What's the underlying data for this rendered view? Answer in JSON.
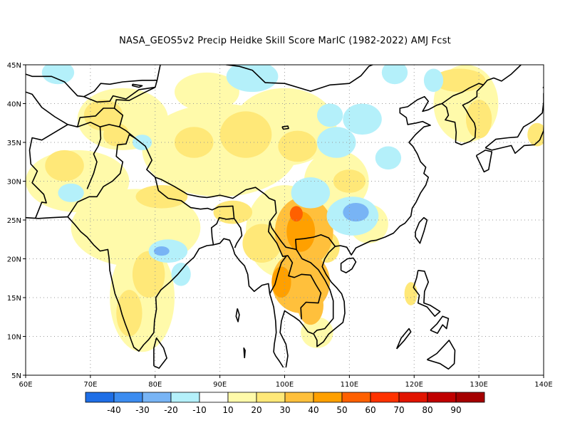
{
  "title": "NASA_GEOS5v2 Precip Heidke Skill Score MarIC (1982-2022) AMJ Fcst",
  "map": {
    "lon_range": [
      60,
      140
    ],
    "lat_range": [
      5,
      45
    ],
    "lon_ticks": [
      {
        "value": 60,
        "label": "60E"
      },
      {
        "value": 70,
        "label": "70E"
      },
      {
        "value": 80,
        "label": "80E"
      },
      {
        "value": 90,
        "label": "90E"
      },
      {
        "value": 100,
        "label": "100E"
      },
      {
        "value": 110,
        "label": "110E"
      },
      {
        "value": 120,
        "label": "120E"
      },
      {
        "value": 130,
        "label": "130E"
      },
      {
        "value": 140,
        "label": "140E"
      }
    ],
    "lat_ticks": [
      {
        "value": 5,
        "label": "5N"
      },
      {
        "value": 10,
        "label": "10N"
      },
      {
        "value": 15,
        "label": "15N"
      },
      {
        "value": 20,
        "label": "20N"
      },
      {
        "value": 25,
        "label": "25N"
      },
      {
        "value": 30,
        "label": "30N"
      },
      {
        "value": 35,
        "label": "35N"
      },
      {
        "value": 40,
        "label": "40N"
      },
      {
        "value": 45,
        "label": "45N"
      }
    ],
    "grid": "dotted",
    "skill_patches": [
      {
        "lon": 103,
        "lat": 23.5,
        "rx": 4.5,
        "ry": 4.5,
        "level": 30
      },
      {
        "lon": 102.5,
        "lat": 17,
        "rx": 4.5,
        "ry": 4,
        "level": 30
      },
      {
        "lon": 102.5,
        "lat": 23.5,
        "rx": 2.2,
        "ry": 2.6,
        "level": 40
      },
      {
        "lon": 101.8,
        "lat": 25.8,
        "rx": 1,
        "ry": 1,
        "level": 50
      },
      {
        "lon": 99.5,
        "lat": 17,
        "rx": 1.5,
        "ry": 2,
        "level": 40
      },
      {
        "lon": 104,
        "lat": 14,
        "rx": 2,
        "ry": 2.5,
        "level": 30
      },
      {
        "lon": 96.5,
        "lat": 22,
        "rx": 3,
        "ry": 2.5,
        "level": 20
      },
      {
        "lon": 92,
        "lat": 26,
        "rx": 3,
        "ry": 1.5,
        "level": 20
      },
      {
        "lon": 72,
        "lat": 38.5,
        "rx": 3,
        "ry": 2,
        "level": 20
      },
      {
        "lon": 74,
        "lat": 36,
        "rx": 2,
        "ry": 1.5,
        "level": 20
      },
      {
        "lon": 81,
        "lat": 28,
        "rx": 4,
        "ry": 1.5,
        "level": 20
      },
      {
        "lon": 79,
        "lat": 18,
        "rx": 2.5,
        "ry": 3,
        "level": 20
      },
      {
        "lon": 76,
        "lat": 13,
        "rx": 2,
        "ry": 3,
        "level": 20
      },
      {
        "lon": 94,
        "lat": 36,
        "rx": 4,
        "ry": 3,
        "level": 20
      },
      {
        "lon": 102,
        "lat": 34.5,
        "rx": 3,
        "ry": 2,
        "level": 20
      },
      {
        "lon": 86,
        "lat": 35,
        "rx": 3,
        "ry": 2,
        "level": 20
      },
      {
        "lon": 66,
        "lat": 32,
        "rx": 3,
        "ry": 2,
        "level": 20
      },
      {
        "lon": 106.5,
        "lat": 21.5,
        "rx": 2,
        "ry": 2,
        "level": 20
      },
      {
        "lon": 119.5,
        "lat": 15.5,
        "rx": 1,
        "ry": 1.5,
        "level": 20
      },
      {
        "lon": 127,
        "lat": 43,
        "rx": 4,
        "ry": 1.5,
        "level": 20
      },
      {
        "lon": 130,
        "lat": 38,
        "rx": 2,
        "ry": 2.5,
        "level": 20
      },
      {
        "lon": 139,
        "lat": 36,
        "rx": 1.5,
        "ry": 1.5,
        "level": 20
      },
      {
        "lon": 110,
        "lat": 30,
        "rx": 2.5,
        "ry": 1.5,
        "level": 20
      },
      {
        "lon": 100,
        "lat": 23.5,
        "rx": 6,
        "ry": 6,
        "level": 10
      },
      {
        "lon": 77,
        "lat": 24,
        "rx": 10,
        "ry": 5,
        "level": 10
      },
      {
        "lon": 78,
        "lat": 15,
        "rx": 5,
        "ry": 7,
        "level": 10
      },
      {
        "lon": 68,
        "lat": 30,
        "rx": 8,
        "ry": 4,
        "level": 10
      },
      {
        "lon": 75,
        "lat": 38,
        "rx": 7,
        "ry": 4,
        "level": 10
      },
      {
        "lon": 90,
        "lat": 34,
        "rx": 12,
        "ry": 6,
        "level": 10
      },
      {
        "lon": 100,
        "lat": 37,
        "rx": 8,
        "ry": 5,
        "level": 10
      },
      {
        "lon": 108,
        "lat": 30,
        "rx": 5,
        "ry": 4,
        "level": 10
      },
      {
        "lon": 128,
        "lat": 40,
        "rx": 5,
        "ry": 5,
        "level": 10
      },
      {
        "lon": 88,
        "lat": 41.5,
        "rx": 5,
        "ry": 2.5,
        "level": 10
      },
      {
        "lon": 113,
        "lat": 24.5,
        "rx": 3,
        "ry": 2.5,
        "level": 10
      },
      {
        "lon": 105,
        "lat": 10.5,
        "rx": 2.5,
        "ry": 2,
        "level": 10
      },
      {
        "lon": 111,
        "lat": 26,
        "rx": 2,
        "ry": 1.2,
        "level": -20
      },
      {
        "lon": 110.5,
        "lat": 25.5,
        "rx": 4,
        "ry": 2.5,
        "level": -10
      },
      {
        "lon": 104,
        "lat": 28.5,
        "rx": 3,
        "ry": 2,
        "level": -10
      },
      {
        "lon": 108,
        "lat": 35,
        "rx": 3,
        "ry": 2,
        "level": -10
      },
      {
        "lon": 112,
        "lat": 38,
        "rx": 3,
        "ry": 2,
        "level": -10
      },
      {
        "lon": 95,
        "lat": 43.5,
        "rx": 4,
        "ry": 2,
        "level": -10
      },
      {
        "lon": 82,
        "lat": 21,
        "rx": 3,
        "ry": 1.5,
        "level": -10
      },
      {
        "lon": 81,
        "lat": 21,
        "rx": 1.2,
        "ry": 0.6,
        "level": -20
      },
      {
        "lon": 84,
        "lat": 18,
        "rx": 1.5,
        "ry": 1.5,
        "level": -10
      },
      {
        "lon": 65,
        "lat": 44,
        "rx": 2.5,
        "ry": 1.5,
        "level": -10
      },
      {
        "lon": 107,
        "lat": 38.5,
        "rx": 2,
        "ry": 1.5,
        "level": -10
      },
      {
        "lon": 117,
        "lat": 44,
        "rx": 2,
        "ry": 1.5,
        "level": -10
      },
      {
        "lon": 123,
        "lat": 43,
        "rx": 1.5,
        "ry": 1.5,
        "level": -10
      },
      {
        "lon": 67,
        "lat": 28.5,
        "rx": 2,
        "ry": 1.2,
        "level": -10
      },
      {
        "lon": 78,
        "lat": 35,
        "rx": 1.5,
        "ry": 1,
        "level": -10
      },
      {
        "lon": 116,
        "lat": 33,
        "rx": 2,
        "ry": 1.5,
        "level": -10
      }
    ]
  },
  "colorbar": {
    "labels": [
      "-40",
      "-30",
      "-20",
      "-10",
      "10",
      "20",
      "30",
      "40",
      "50",
      "60",
      "70",
      "80",
      "90"
    ],
    "colors": [
      "#1e6ee6",
      "#3c8cf0",
      "#78b4f5",
      "#b4f0fa",
      "#ffffff",
      "#fffaaa",
      "#ffe878",
      "#ffc03c",
      "#ffa000",
      "#ff6000",
      "#ff3200",
      "#e11400",
      "#c00000",
      "#a50000"
    ]
  },
  "level_colors": {
    "-20": "#78b4f5",
    "-10": "#b4f0fa",
    "10": "#fffaaa",
    "20": "#ffe878",
    "30": "#ffc03c",
    "40": "#ffa000",
    "50": "#ff6000"
  },
  "coastline_color": "#000000"
}
